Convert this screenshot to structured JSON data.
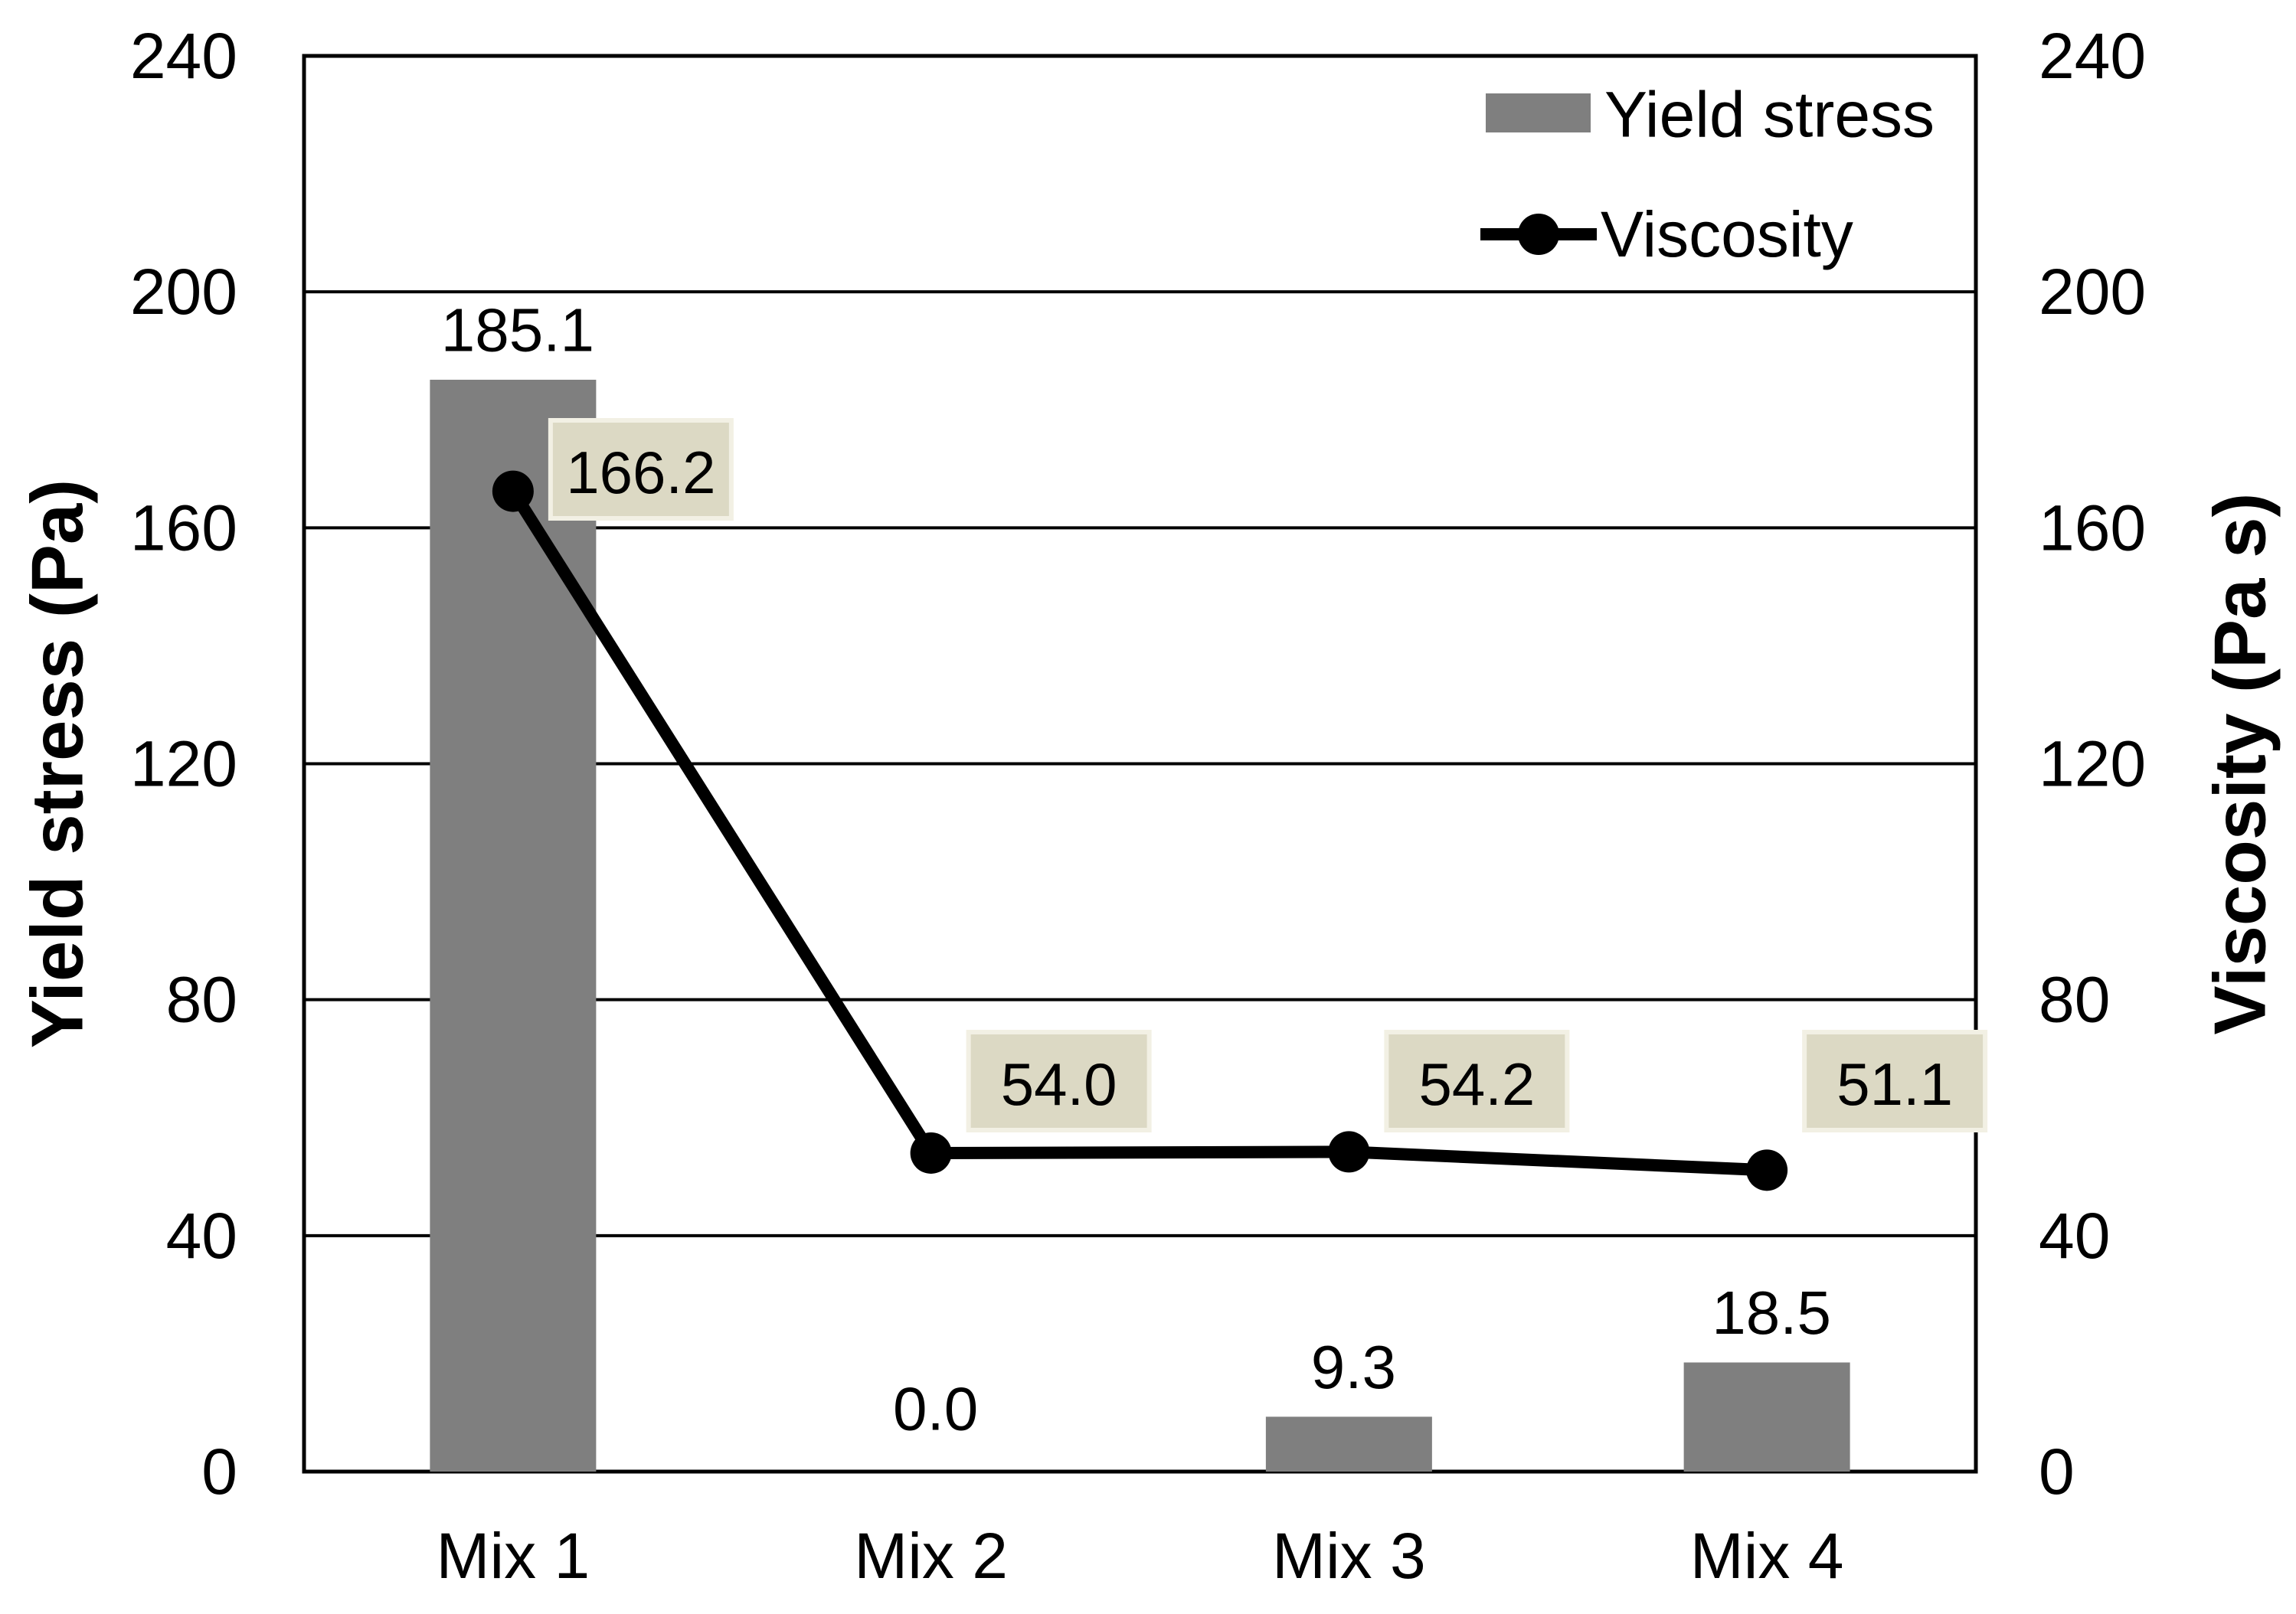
{
  "chart_data": {
    "type": "combo-bar-line",
    "categories": [
      "Mix 1",
      "Mix 2",
      "Mix 3",
      "Mix 4"
    ],
    "series": [
      {
        "name": "Yield stress",
        "type": "bar",
        "axis": "left",
        "values": [
          185.1,
          0.0,
          9.3,
          18.5
        ],
        "labels": [
          "185.1",
          "0.0",
          "9.3",
          "18.5"
        ],
        "color": "#7f7f7f"
      },
      {
        "name": "Viscosity",
        "type": "line",
        "axis": "right",
        "values": [
          166.2,
          54.0,
          54.2,
          51.1
        ],
        "labels": [
          "166.2",
          "54.0",
          "54.2",
          "51.1"
        ],
        "color": "#000000",
        "marker": "circle",
        "label_box_fill": "#dcd9c4",
        "label_box_border": "#f2f0e4"
      }
    ],
    "left_axis": {
      "title": "Yield stress (Pa)",
      "min": 0,
      "max": 240,
      "ticks": [
        "0",
        "40",
        "80",
        "120",
        "160",
        "200",
        "240"
      ]
    },
    "right_axis": {
      "title": "Viscosity (Pa s)",
      "min": 0,
      "max": 240,
      "ticks": [
        "0",
        "40",
        "80",
        "120",
        "160",
        "200",
        "240"
      ]
    },
    "legend": {
      "position": "top-right-inside",
      "entries": [
        {
          "label": "Yield stress",
          "swatch": "gray-rect"
        },
        {
          "label": "Viscosity",
          "swatch": "black-line-dot"
        }
      ]
    },
    "grid": "horizontal",
    "plot_border": "black-frame",
    "background": "#ffffff",
    "colors": {
      "bar": "#7f7f7f",
      "line": "#000000",
      "grid": "#000000",
      "label_box_fill": "#dcd9c4",
      "label_box_border": "#f2f0e4",
      "text": "#000000"
    }
  }
}
